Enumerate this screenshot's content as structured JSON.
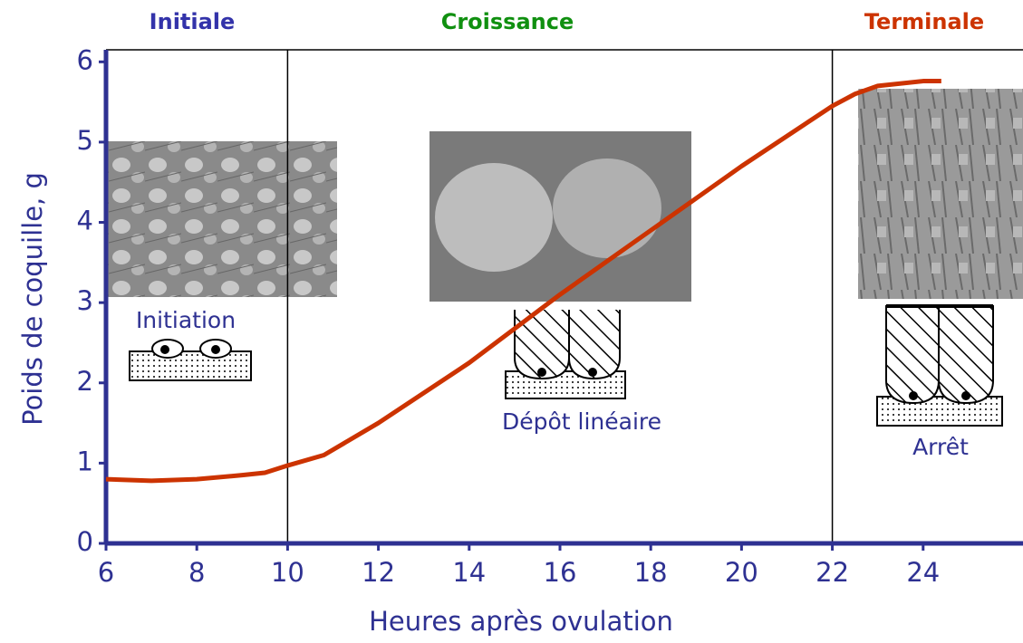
{
  "chart_data": {
    "type": "line",
    "x_label": "Heures après ovulation",
    "y_label": "Poids de coquille, g",
    "x": [
      6,
      7,
      8,
      9,
      9.5,
      10,
      10.8,
      12,
      14,
      16,
      18,
      20,
      22,
      22.5,
      23,
      24,
      24.4
    ],
    "values": [
      0.8,
      0.78,
      0.8,
      0.85,
      0.88,
      0.97,
      1.1,
      1.5,
      2.25,
      3.1,
      3.9,
      4.7,
      5.45,
      5.6,
      5.7,
      5.76,
      5.76
    ],
    "color": "#cc3300",
    "xlim": [
      6,
      26.2
    ],
    "ylim": [
      0,
      6.15
    ],
    "xticks": [
      6,
      8,
      10,
      12,
      14,
      16,
      18,
      20,
      22,
      24
    ],
    "yticks": [
      0,
      1,
      2,
      3,
      4,
      5,
      6
    ],
    "phase_boundaries": [
      10,
      22
    ],
    "phases": [
      {
        "label": "Initiale",
        "color": "#3333aa"
      },
      {
        "label": "Croissance",
        "color": "#109010"
      },
      {
        "label": "Terminale",
        "color": "#cc3300"
      }
    ],
    "annotations": [
      "Initiation",
      "Dépôt linéaire",
      "Arrêt"
    ]
  }
}
